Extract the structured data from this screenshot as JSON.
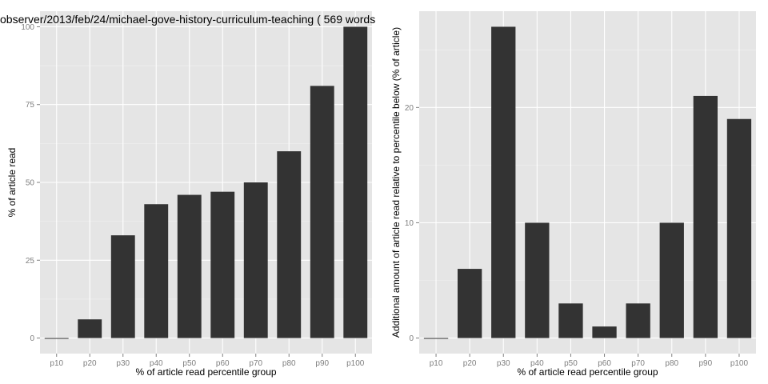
{
  "chart_data": [
    {
      "type": "bar",
      "title": "observer/2013/feb/24/michael-gove-history-curriculum-teaching ( 569 words",
      "xlabel": "% of article read percentile group",
      "ylabel": "% of article read",
      "categories": [
        "p10",
        "p20",
        "p30",
        "p40",
        "p50",
        "p60",
        "p70",
        "p80",
        "p90",
        "p100"
      ],
      "values": [
        0,
        6,
        33,
        43,
        46,
        47,
        50,
        60,
        81,
        100
      ],
      "ylim": [
        -5,
        105
      ],
      "yticks": [
        0,
        25,
        50,
        75,
        100
      ],
      "grid": true,
      "bar_color": "#333333",
      "panel_color": "#e5e5e5"
    },
    {
      "type": "bar",
      "title": "",
      "xlabel": "% of article read percentile group",
      "ylabel": "Additional amount of article read relative to percentile below (% of article)",
      "categories": [
        "p10",
        "p20",
        "p30",
        "p40",
        "p50",
        "p60",
        "p70",
        "p80",
        "p90",
        "p100"
      ],
      "values": [
        0,
        6,
        27,
        10,
        3,
        1,
        3,
        10,
        21,
        19
      ],
      "ylim": [
        -1.35,
        28.35
      ],
      "yticks": [
        0,
        10,
        20
      ],
      "grid": true,
      "bar_color": "#333333",
      "panel_color": "#e5e5e5"
    }
  ]
}
